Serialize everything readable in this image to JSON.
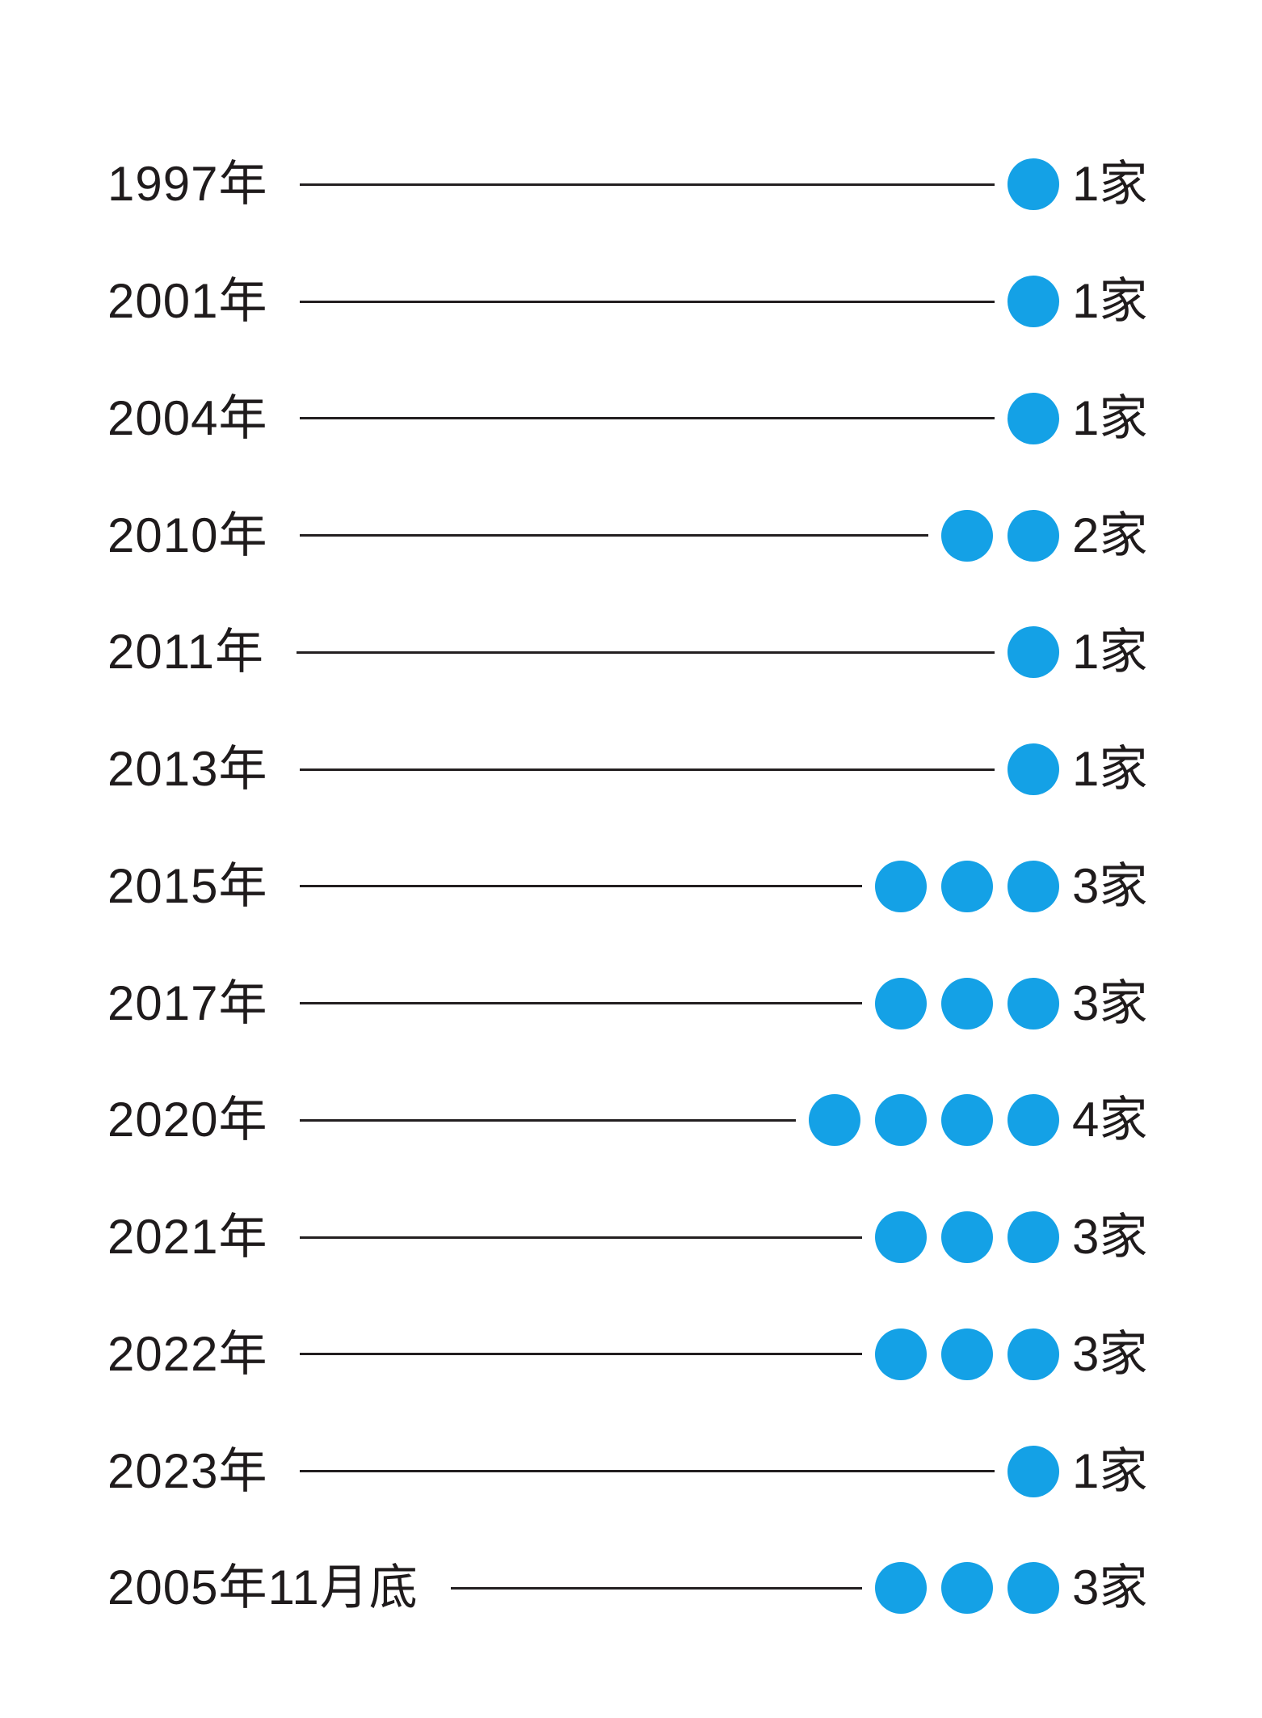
{
  "chart_data": {
    "type": "bar",
    "variant": "dot-pictogram-timeline",
    "orientation": "horizontal",
    "categories": [
      "1997年",
      "2001年",
      "2004年",
      "2010年",
      "2011年",
      "2013年",
      "2015年",
      "2017年",
      "2020年",
      "2021年",
      "2022年",
      "2023年",
      "2005年11月底"
    ],
    "values": [
      1,
      1,
      1,
      2,
      1,
      1,
      3,
      3,
      4,
      3,
      3,
      1,
      3
    ],
    "unit": "家",
    "value_labels": [
      "1家",
      "1家",
      "1家",
      "2家",
      "1家",
      "1家",
      "3家",
      "3家",
      "4家",
      "3家",
      "3家",
      "1家",
      "3家"
    ],
    "title": "",
    "xlabel": "",
    "ylabel": "",
    "legend": false,
    "grid": false,
    "dot_color": "#14a1e6",
    "line_color": "#231f20",
    "text_color": "#1f1b1c",
    "background_color": "#ffffff"
  },
  "rows": [
    {
      "year": "1997年",
      "count": 1,
      "label": "1家"
    },
    {
      "year": "2001年",
      "count": 1,
      "label": "1家"
    },
    {
      "year": "2004年",
      "count": 1,
      "label": "1家"
    },
    {
      "year": "2010年",
      "count": 2,
      "label": "2家"
    },
    {
      "year": "2011年",
      "count": 1,
      "label": "1家"
    },
    {
      "year": "2013年",
      "count": 1,
      "label": "1家"
    },
    {
      "year": "2015年",
      "count": 3,
      "label": "3家"
    },
    {
      "year": "2017年",
      "count": 3,
      "label": "3家"
    },
    {
      "year": "2020年",
      "count": 4,
      "label": "4家"
    },
    {
      "year": "2021年",
      "count": 3,
      "label": "3家"
    },
    {
      "year": "2022年",
      "count": 3,
      "label": "3家"
    },
    {
      "year": "2023年",
      "count": 1,
      "label": "1家"
    },
    {
      "year": "2005年11月底",
      "count": 3,
      "label": "3家"
    }
  ]
}
